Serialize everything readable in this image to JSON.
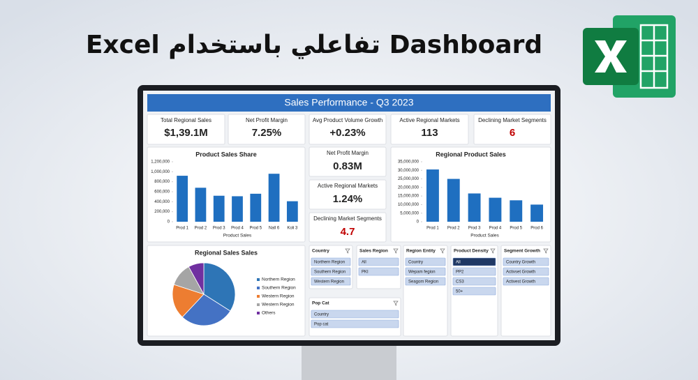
{
  "header": {
    "title": "Dashboard تفاعلي باستخدام Excel"
  },
  "dashboard": {
    "title": "Sales Performance - Q3 2023",
    "kpis": [
      {
        "label": "Total Regional Sales",
        "value": "$1,39.1M"
      },
      {
        "label": "Net Profit Margin",
        "value": "7.25%"
      },
      {
        "label": "Avg Product Volume Growth",
        "value": "+0.23%"
      },
      {
        "label": "Active Regional Markets",
        "value": "113"
      },
      {
        "label": "Declining Market Segments",
        "value": "6",
        "value_color": "#c00000"
      }
    ],
    "side_kpis": [
      {
        "label": "Net Profit Margin",
        "value": "0.83M"
      },
      {
        "label": "Active Regional Markets",
        "value": "1.24%"
      },
      {
        "label": "Declining Market Segments",
        "value": "4.7",
        "value_color": "#c00000"
      }
    ],
    "charts": [
      {
        "type": "bar",
        "title": "Product Sales Share",
        "xlabel": "Product Sales",
        "categories": [
          "Prod 1",
          "Prod 2",
          "Prod 3",
          "Prod 4",
          "Prod 5",
          "Nall 6",
          "Koli 3"
        ],
        "values": [
          920000,
          680000,
          520000,
          510000,
          560000,
          960000,
          410000
        ],
        "color": "#1f6fc0",
        "ylim": [
          0,
          1200000
        ],
        "yticks": [
          0,
          {
            "value": 200000,
            "label": "200,000"
          },
          {
            "value": 400000,
            "label": "400,000"
          },
          {
            "value": 600000,
            "label": "600,000"
          },
          {
            "value": 800000,
            "label": "800,000"
          },
          {
            "value": 1000000,
            "label": "1,000,000"
          },
          {
            "value": 1200000,
            "label": "1,200,000"
          }
        ]
      },
      {
        "type": "bar",
        "title": "Regional Product Sales",
        "xlabel": "Product Sales",
        "categories": [
          "Prod 1",
          "Prod 2",
          "Prod 3",
          "Prod 4",
          "Prod 5",
          "Prod 6"
        ],
        "values": [
          30500000,
          25000000,
          16500000,
          14000000,
          12500000,
          10000000
        ],
        "color": "#1f6fc0",
        "ylim": [
          0,
          35000000
        ],
        "yticks": [
          0,
          {
            "value": 5000000,
            "label": "5,000,000"
          },
          {
            "value": 10000000,
            "label": "10,000,000"
          },
          {
            "value": 15000000,
            "label": "15,000,000"
          },
          {
            "value": 20000000,
            "label": "20,000,000"
          },
          {
            "value": 25000000,
            "label": "25,000,000"
          },
          {
            "value": 30000000,
            "label": "30,000,000"
          },
          {
            "value": 35000000,
            "label": "35,000,000"
          }
        ]
      },
      {
        "type": "pie",
        "title": "Regional Sales Sales",
        "categories": [
          "Northern Region",
          "Southern Region",
          "Western Region",
          "Western Region",
          "Others"
        ],
        "values": [
          34,
          28,
          18,
          12,
          8
        ],
        "colors": [
          "#2e75b6",
          "#4472c4",
          "#ed7d31",
          "#a5a5a5",
          "#7030a0"
        ]
      }
    ],
    "slicers": [
      {
        "title": "Country",
        "items": [
          "Northern Region",
          "Southern Region",
          "Western Region"
        ]
      },
      {
        "title": "Sales Region",
        "items": [
          "All",
          "PKI"
        ]
      },
      {
        "title": "Pop Cat",
        "items": [
          "Country",
          "Pop cat"
        ]
      },
      {
        "title": "Region Entity",
        "items": [
          "Country",
          "Wepam fegion",
          "Seagom Region"
        ]
      },
      {
        "title": "Product Density",
        "items": [
          "All",
          "PP2",
          "CS3",
          "50+"
        ],
        "selected": 0
      },
      {
        "title": "Segment Growth",
        "items": [
          "Country Growth",
          "Activset Growth",
          "Activest Growth"
        ]
      }
    ]
  }
}
